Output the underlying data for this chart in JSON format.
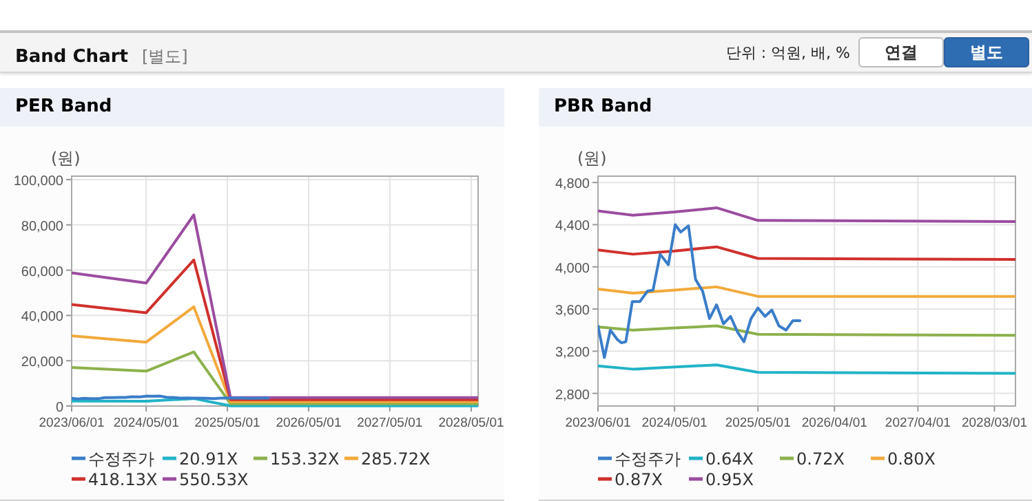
{
  "chart_data": [
    {
      "type": "other",
      "title": "Band Chart",
      "subtitle": "[별도]",
      "annotations": [
        "단위 : 억원, 배, %",
        "연결",
        "별도"
      ]
    },
    {
      "type": "line",
      "title": "PER Band",
      "ylabel": "(원)",
      "xlim": [
        "2023-06-01",
        "2028-06-01"
      ],
      "ylim": [
        0,
        101500
      ],
      "xticks": [
        {
          "value": "2023-06-01",
          "label": "2023/06/01"
        },
        {
          "value": "2024-05-01",
          "label": "2024/05/01"
        },
        {
          "value": "2025-05-01",
          "label": "2025/05/01"
        },
        {
          "value": "2026-05-01",
          "label": "2026/05/01"
        },
        {
          "value": "2027-05-01",
          "label": "2027/05/01"
        },
        {
          "value": "2028-05-01",
          "label": "2028/05/01"
        }
      ],
      "yticks": [
        0,
        {
          "value": 20000,
          "label": "20,000"
        },
        {
          "value": 40000,
          "label": "40,000"
        },
        {
          "value": 60000,
          "label": "60,000"
        },
        {
          "value": 80000,
          "label": "80,000"
        },
        {
          "value": 100000,
          "label": "100,000"
        }
      ],
      "grid": true,
      "legend": "bottom",
      "series": [
        {
          "name": "수정주가",
          "color": "#3a7dc9",
          "x": [
            "2023-06-01",
            "2023-06-29",
            "2023-07-25",
            "2023-08-25",
            "2023-09-12",
            "2023-10-01",
            "2023-10-29",
            "2023-12-01",
            "2024-01-04",
            "2024-01-28",
            "2024-02-28",
            "2024-04-04",
            "2024-05-04",
            "2024-05-28",
            "2024-07-01",
            "2024-08-01",
            "2024-09-01",
            "2024-10-01",
            "2024-11-01",
            "2024-12-01",
            "2025-01-01",
            "2025-02-01",
            "2025-03-01",
            "2025-04-01",
            "2025-05-01",
            "2025-06-01",
            "2025-07-01",
            "2025-08-01",
            "2025-09-01",
            "2025-10-01",
            "2025-11-01"
          ],
          "values": [
            3400,
            3100,
            3400,
            3300,
            3300,
            3300,
            3700,
            3700,
            3800,
            3800,
            4100,
            4000,
            4400,
            4300,
            4400,
            3900,
            3800,
            3500,
            3600,
            3500,
            3500,
            3400,
            3300,
            3500,
            3600,
            3500,
            3600,
            3400,
            3400,
            3500,
            3500
          ]
        },
        {
          "name": "20.91X",
          "color": "#21b3c7",
          "x": [
            "2023-06-01",
            "2024-05-01",
            "2024-12-01",
            "2025-05-15",
            "2028-06-01"
          ],
          "values": [
            2200,
            2100,
            3300,
            100,
            100
          ]
        },
        {
          "name": "153.32X",
          "color": "#8cb14c",
          "x": [
            "2023-06-01",
            "2024-05-01",
            "2024-12-01",
            "2025-05-15",
            "2028-06-01"
          ],
          "values": [
            17000,
            15400,
            23900,
            1000,
            1000
          ]
        },
        {
          "name": "285.72X",
          "color": "#f2a93b",
          "x": [
            "2023-06-01",
            "2024-05-01",
            "2024-12-01",
            "2025-05-15",
            "2028-06-01"
          ],
          "values": [
            31000,
            28200,
            43800,
            1900,
            1900
          ]
        },
        {
          "name": "418.13X",
          "color": "#d0312d",
          "x": [
            "2023-06-01",
            "2024-05-01",
            "2024-12-01",
            "2025-05-15",
            "2028-06-01"
          ],
          "values": [
            44800,
            41200,
            64500,
            2800,
            2800
          ]
        },
        {
          "name": "550.53X",
          "color": "#9b4d9f",
          "x": [
            "2023-06-01",
            "2024-05-01",
            "2024-12-01",
            "2025-05-15",
            "2028-06-01"
          ],
          "values": [
            58800,
            54300,
            84400,
            3700,
            3700
          ]
        }
      ]
    },
    {
      "type": "line",
      "title": "PBR Band",
      "ylabel": "(원)",
      "xlim": [
        "2023-06-01",
        "2028-06-01"
      ],
      "ylim": [
        2680,
        4860
      ],
      "xticks": [
        {
          "value": "2023-06-01",
          "label": "2023/06/01"
        },
        {
          "value": "2024-05-01",
          "label": "2024/05/01"
        },
        {
          "value": "2025-05-01",
          "label": "2025/05/01"
        },
        {
          "value": "2026-04-01",
          "label": "2026/04/01"
        },
        {
          "value": "2027-04-01",
          "label": "2027/04/01"
        },
        {
          "value": "2028-03-01",
          "label": "2028/03/01"
        }
      ],
      "yticks": [
        {
          "value": 2800,
          "label": "2,800"
        },
        {
          "value": 3200,
          "label": "3,200"
        },
        {
          "value": 3600,
          "label": "3,600"
        },
        {
          "value": 4000,
          "label": "4,000"
        },
        {
          "value": 4400,
          "label": "4,400"
        },
        {
          "value": 4800,
          "label": "4,800"
        }
      ],
      "grid": true,
      "legend": "bottom",
      "series": [
        {
          "name": "수정주가",
          "color": "#3a7dc9",
          "x": [
            "2023-06-01",
            "2023-06-29",
            "2023-07-25",
            "2023-08-25",
            "2023-09-12",
            "2023-10-01",
            "2023-10-29",
            "2023-12-01",
            "2024-01-04",
            "2024-01-28",
            "2024-02-28",
            "2024-04-04",
            "2024-05-04",
            "2024-05-28",
            "2024-07-01",
            "2024-08-01",
            "2024-09-01",
            "2024-10-01",
            "2024-11-01",
            "2024-12-01",
            "2025-01-01",
            "2025-02-01",
            "2025-03-01",
            "2025-04-01",
            "2025-05-01",
            "2025-06-01",
            "2025-07-01",
            "2025-08-01",
            "2025-09-01",
            "2025-10-01",
            "2025-11-01"
          ],
          "values": [
            3440,
            3140,
            3400,
            3310,
            3280,
            3290,
            3670,
            3670,
            3770,
            3780,
            4120,
            4020,
            4400,
            4330,
            4390,
            3880,
            3770,
            3510,
            3640,
            3460,
            3530,
            3380,
            3290,
            3510,
            3610,
            3530,
            3590,
            3440,
            3400,
            3490,
            3490
          ]
        },
        {
          "name": "0.64X",
          "color": "#21b3c7",
          "x": [
            "2023-06-01",
            "2023-11-01",
            "2024-05-01",
            "2024-11-01",
            "2025-05-01",
            "2028-06-01"
          ],
          "values": [
            3060,
            3030,
            3050,
            3070,
            3000,
            2990
          ]
        },
        {
          "name": "0.72X",
          "color": "#8cb14c",
          "x": [
            "2023-06-01",
            "2023-11-01",
            "2024-05-01",
            "2024-11-01",
            "2025-05-01",
            "2028-06-01"
          ],
          "values": [
            3430,
            3400,
            3420,
            3440,
            3360,
            3350
          ]
        },
        {
          "name": "0.80X",
          "color": "#f2a93b",
          "x": [
            "2023-06-01",
            "2023-11-01",
            "2024-05-01",
            "2024-11-01",
            "2025-05-01",
            "2028-06-01"
          ],
          "values": [
            3790,
            3750,
            3780,
            3810,
            3720,
            3720
          ]
        },
        {
          "name": "0.87X",
          "color": "#d0312d",
          "x": [
            "2023-06-01",
            "2023-11-01",
            "2024-05-01",
            "2024-11-01",
            "2025-05-01",
            "2028-06-01"
          ],
          "values": [
            4160,
            4120,
            4150,
            4190,
            4080,
            4070
          ]
        },
        {
          "name": "0.95X",
          "color": "#9b4d9f",
          "x": [
            "2023-06-01",
            "2023-11-01",
            "2024-05-01",
            "2024-11-01",
            "2025-05-01",
            "2028-06-01"
          ],
          "values": [
            4530,
            4490,
            4520,
            4560,
            4440,
            4430
          ]
        }
      ]
    }
  ]
}
